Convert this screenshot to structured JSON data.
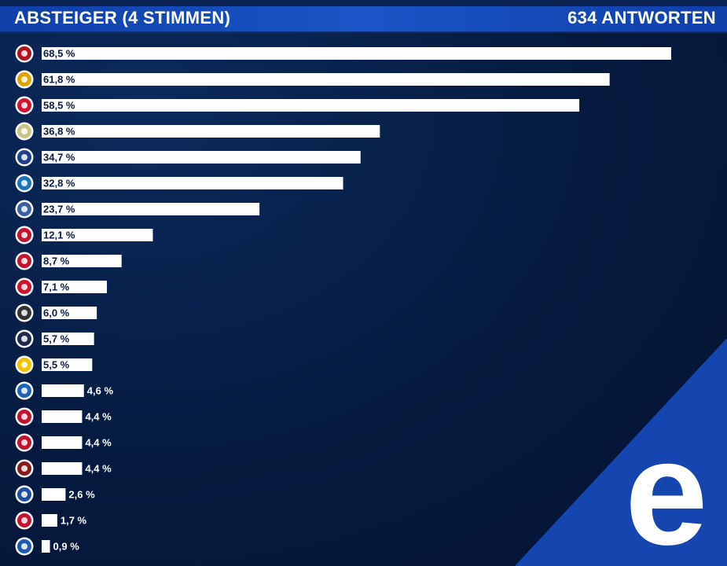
{
  "header": {
    "title": "ABSTEIGER (4 STIMMEN)",
    "count": "634 ANTWORTEN"
  },
  "chart_data": {
    "type": "bar",
    "orientation": "horizontal",
    "title": "ABSTEIGER (4 STIMMEN)",
    "subtitle": "634 ANTWORTEN",
    "xlim": [
      0,
      70
    ],
    "grid": false,
    "legend": "none",
    "value_labels": [
      "68,5 %",
      "61,8 %",
      "58,5 %",
      "36,8 %",
      "34,7 %",
      "32,8 %",
      "23,7 %",
      "12,1 %",
      "8,7 %",
      "7,1 %",
      "6,0 %",
      "5,7 %",
      "5,5 %",
      "4,6 %",
      "4,4 %",
      "4,4 %",
      "4,4 %",
      "2,6 %",
      "1,7 %",
      "0,9 %"
    ],
    "values": [
      68.5,
      61.8,
      58.5,
      36.8,
      34.7,
      32.8,
      23.7,
      12.1,
      8.7,
      7.1,
      6.0,
      5.7,
      5.5,
      4.6,
      4.4,
      4.4,
      4.4,
      2.6,
      1.7,
      0.9
    ],
    "category_icons": [
      "club-logo-1-icon",
      "club-logo-2-icon",
      "club-logo-3-icon",
      "club-logo-4-icon",
      "club-logo-5-icon",
      "club-logo-6-icon",
      "club-logo-7-icon",
      "club-logo-8-icon",
      "club-logo-9-icon",
      "club-logo-10-icon",
      "club-logo-11-icon",
      "club-logo-12-icon",
      "club-logo-13-icon",
      "club-logo-14-icon",
      "club-logo-15-icon",
      "club-logo-16-icon",
      "club-logo-17-icon",
      "club-logo-18-icon",
      "club-logo-19-icon",
      "club-logo-20-icon"
    ]
  },
  "colors": {
    "background": "#061a3f",
    "header": "#1547b3",
    "bar": "#ffffff",
    "label_inside": "#0a1b3d",
    "label_outside": "#ffffff",
    "corner": "#1546b0"
  },
  "brand": {
    "logo_letter": "e",
    "logo_icon": "e-logo-icon"
  }
}
